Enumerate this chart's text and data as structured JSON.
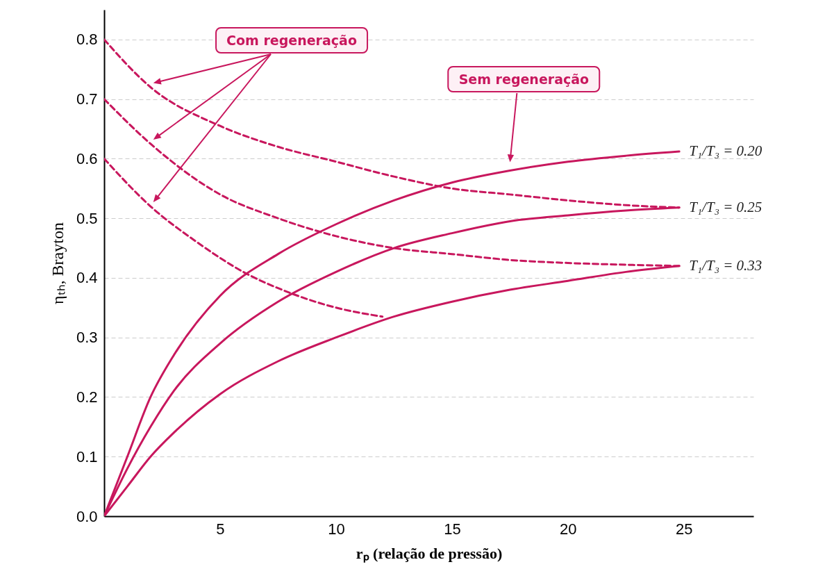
{
  "chart_data": {
    "type": "line",
    "xlabel": "rₚ  (relação de pressão)",
    "ylabel": "ηₜₕ, Brayton",
    "annotations": [
      "Com regeneração",
      "Sem regeneração"
    ],
    "xlim": [
      0,
      28
    ],
    "xticks": [
      5,
      10,
      15,
      20,
      25
    ],
    "ylim": [
      0,
      0.85
    ],
    "yticks": [
      {
        "value": 0,
        "label": "0.0"
      },
      0.1,
      0.2,
      0.3,
      0.4,
      0.5,
      0.6,
      0.7,
      0.8
    ],
    "grid": "y",
    "marker": "none",
    "series": [
      {
        "name": "T₁/T₃ = 0.20",
        "color": "#c8175d",
        "line_style": "solid",
        "x": [
          0,
          1,
          2,
          3,
          5,
          7.5,
          10,
          12.5,
          15,
          17.5,
          20,
          22.5,
          24.8
        ],
        "values": [
          0,
          0.1,
          0.2,
          0.27,
          0.37,
          0.44,
          0.49,
          0.53,
          0.56,
          0.58,
          0.595,
          0.605,
          0.612
        ]
      },
      {
        "name": "T₁/T₃ = 0.25",
        "color": "#c8175d",
        "line_style": "solid",
        "x": [
          0,
          1,
          2,
          3,
          5,
          7.5,
          10,
          12.5,
          15,
          17.5,
          20,
          22.5,
          24.8
        ],
        "values": [
          0,
          0.08,
          0.15,
          0.21,
          0.29,
          0.36,
          0.41,
          0.45,
          0.475,
          0.495,
          0.505,
          0.513,
          0.518
        ]
      },
      {
        "name": "T₁/T₃ = 0.33",
        "color": "#c8175d",
        "line_style": "solid",
        "x": [
          0,
          1,
          2,
          3,
          5,
          7.5,
          10,
          12.5,
          15,
          17.5,
          20,
          22.5,
          24.8
        ],
        "values": [
          0,
          0.05,
          0.1,
          0.14,
          0.205,
          0.26,
          0.3,
          0.335,
          0.36,
          0.38,
          0.395,
          0.41,
          0.42
        ]
      },
      {
        "color": "#c8175d",
        "line_style": "dashed",
        "x": [
          0,
          2,
          5,
          7.5,
          10,
          12.5,
          15,
          17.5,
          20,
          22.5,
          24.8
        ],
        "values": [
          0.8,
          0.72,
          0.655,
          0.62,
          0.595,
          0.57,
          0.55,
          0.54,
          0.53,
          0.522,
          0.518
        ]
      },
      {
        "color": "#c8175d",
        "line_style": "dashed",
        "x": [
          0,
          2,
          5,
          7.5,
          10,
          12.5,
          15,
          17.5,
          20,
          22.5,
          24.8
        ],
        "values": [
          0.7,
          0.625,
          0.54,
          0.5,
          0.47,
          0.45,
          0.44,
          0.43,
          0.425,
          0.422,
          0.42
        ]
      },
      {
        "color": "#c8175d",
        "line_style": "dashed",
        "x": [
          0,
          2,
          4,
          6,
          8,
          10,
          12
        ],
        "values": [
          0.6,
          0.52,
          0.46,
          0.41,
          0.375,
          0.35,
          0.335
        ]
      }
    ]
  }
}
